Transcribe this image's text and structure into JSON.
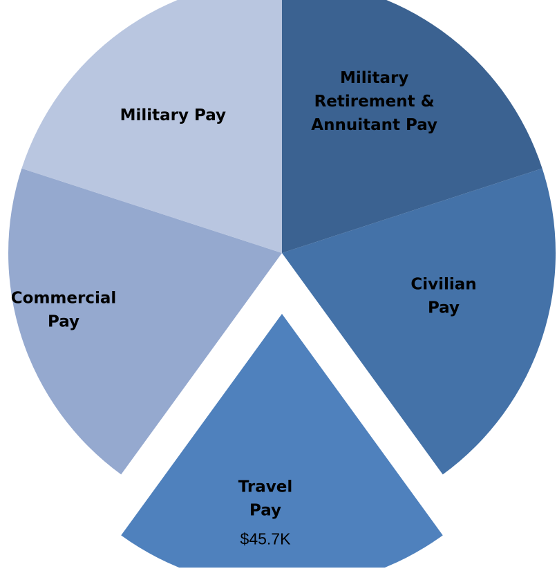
{
  "chart_data": {
    "type": "pie",
    "title": "",
    "legend": "none",
    "slices": [
      {
        "name": "Military Retirement & Annuitant Pay",
        "label_lines": [
          "Military",
          "Retirement &",
          "Annuitant Pay"
        ],
        "share_of_circle": 0.2,
        "color": "#3B6291",
        "exploded": false
      },
      {
        "name": "Civilian Pay",
        "label_lines": [
          "Civilian",
          "Pay"
        ],
        "share_of_circle": 0.2,
        "color": "#4472A8",
        "exploded": false
      },
      {
        "name": "Travel Pay",
        "label_lines": [
          "Travel",
          "Pay"
        ],
        "value_label": "$45.7K",
        "share_of_circle": 0.2,
        "color": "#4F81BD",
        "exploded": true
      },
      {
        "name": "Commercial Pay",
        "label_lines": [
          "Commercial",
          "Pay"
        ],
        "share_of_circle": 0.2,
        "color": "#95A9CF",
        "exploded": false
      },
      {
        "name": "Military Pay",
        "label_lines": [
          "Military Pay"
        ],
        "share_of_circle": 0.2,
        "color": "#B9C6E0",
        "exploded": false
      }
    ]
  }
}
